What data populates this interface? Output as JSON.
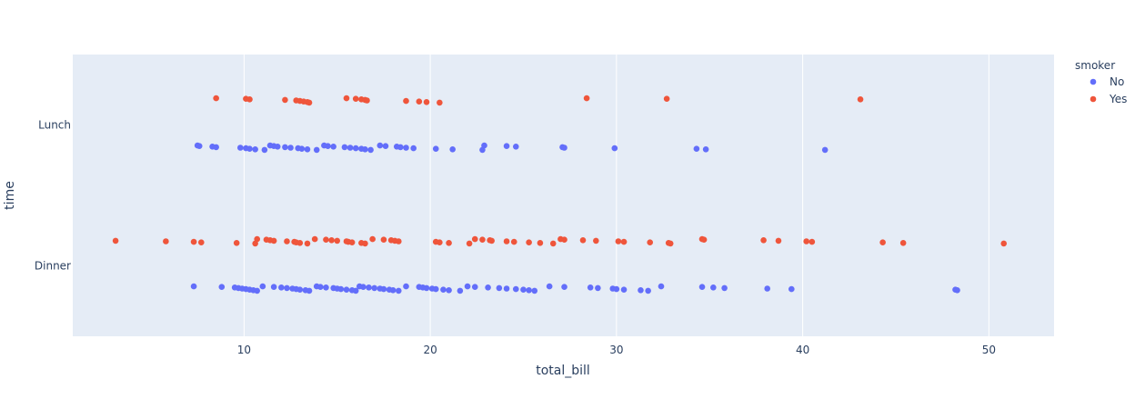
{
  "chart_data": {
    "type": "scatter",
    "xlabel": "total_bill",
    "ylabel": "time",
    "xlim": [
      0.8,
      53.5
    ],
    "x_ticks": [
      10,
      20,
      30,
      40,
      50
    ],
    "categories": [
      "Dinner",
      "Lunch"
    ],
    "grid": "vertical",
    "legend_title": "smoker",
    "legend_position": "top-right",
    "colors": {
      "plot_bg": "#e5ecf6",
      "grid": "#ffffff",
      "text": "#2a3f5f",
      "No": "#636efa",
      "Yes": "#ef553b"
    },
    "series": [
      {
        "name": "No",
        "color": "#636efa",
        "points": [
          {
            "x": 7.5,
            "y": "Lunch"
          },
          {
            "x": 7.6,
            "y": "Lunch"
          },
          {
            "x": 8.3,
            "y": "Lunch"
          },
          {
            "x": 8.5,
            "y": "Lunch"
          },
          {
            "x": 9.8,
            "y": "Lunch"
          },
          {
            "x": 10.1,
            "y": "Lunch"
          },
          {
            "x": 10.3,
            "y": "Lunch"
          },
          {
            "x": 10.6,
            "y": "Lunch"
          },
          {
            "x": 11.1,
            "y": "Lunch"
          },
          {
            "x": 11.4,
            "y": "Lunch"
          },
          {
            "x": 11.6,
            "y": "Lunch"
          },
          {
            "x": 11.8,
            "y": "Lunch"
          },
          {
            "x": 12.2,
            "y": "Lunch"
          },
          {
            "x": 12.5,
            "y": "Lunch"
          },
          {
            "x": 12.9,
            "y": "Lunch"
          },
          {
            "x": 13.1,
            "y": "Lunch"
          },
          {
            "x": 13.4,
            "y": "Lunch"
          },
          {
            "x": 13.9,
            "y": "Lunch"
          },
          {
            "x": 14.3,
            "y": "Lunch"
          },
          {
            "x": 14.5,
            "y": "Lunch"
          },
          {
            "x": 14.8,
            "y": "Lunch"
          },
          {
            "x": 15.4,
            "y": "Lunch"
          },
          {
            "x": 15.7,
            "y": "Lunch"
          },
          {
            "x": 16.0,
            "y": "Lunch"
          },
          {
            "x": 16.3,
            "y": "Lunch"
          },
          {
            "x": 16.5,
            "y": "Lunch"
          },
          {
            "x": 16.8,
            "y": "Lunch"
          },
          {
            "x": 17.3,
            "y": "Lunch"
          },
          {
            "x": 17.6,
            "y": "Lunch"
          },
          {
            "x": 18.2,
            "y": "Lunch"
          },
          {
            "x": 18.4,
            "y": "Lunch"
          },
          {
            "x": 18.7,
            "y": "Lunch"
          },
          {
            "x": 19.1,
            "y": "Lunch"
          },
          {
            "x": 20.3,
            "y": "Lunch"
          },
          {
            "x": 21.2,
            "y": "Lunch"
          },
          {
            "x": 22.8,
            "y": "Lunch"
          },
          {
            "x": 22.9,
            "y": "Lunch"
          },
          {
            "x": 24.1,
            "y": "Lunch"
          },
          {
            "x": 24.6,
            "y": "Lunch"
          },
          {
            "x": 27.1,
            "y": "Lunch"
          },
          {
            "x": 27.2,
            "y": "Lunch"
          },
          {
            "x": 29.9,
            "y": "Lunch"
          },
          {
            "x": 34.3,
            "y": "Lunch"
          },
          {
            "x": 34.8,
            "y": "Lunch"
          },
          {
            "x": 41.2,
            "y": "Lunch"
          },
          {
            "x": 7.3,
            "y": "Dinner"
          },
          {
            "x": 8.8,
            "y": "Dinner"
          },
          {
            "x": 9.5,
            "y": "Dinner"
          },
          {
            "x": 9.7,
            "y": "Dinner"
          },
          {
            "x": 9.9,
            "y": "Dinner"
          },
          {
            "x": 10.1,
            "y": "Dinner"
          },
          {
            "x": 10.3,
            "y": "Dinner"
          },
          {
            "x": 10.5,
            "y": "Dinner"
          },
          {
            "x": 10.7,
            "y": "Dinner"
          },
          {
            "x": 11.0,
            "y": "Dinner"
          },
          {
            "x": 11.6,
            "y": "Dinner"
          },
          {
            "x": 12.0,
            "y": "Dinner"
          },
          {
            "x": 12.3,
            "y": "Dinner"
          },
          {
            "x": 12.6,
            "y": "Dinner"
          },
          {
            "x": 12.8,
            "y": "Dinner"
          },
          {
            "x": 13.0,
            "y": "Dinner"
          },
          {
            "x": 13.3,
            "y": "Dinner"
          },
          {
            "x": 13.5,
            "y": "Dinner"
          },
          {
            "x": 13.9,
            "y": "Dinner"
          },
          {
            "x": 14.1,
            "y": "Dinner"
          },
          {
            "x": 14.4,
            "y": "Dinner"
          },
          {
            "x": 14.8,
            "y": "Dinner"
          },
          {
            "x": 15.0,
            "y": "Dinner"
          },
          {
            "x": 15.2,
            "y": "Dinner"
          },
          {
            "x": 15.5,
            "y": "Dinner"
          },
          {
            "x": 15.8,
            "y": "Dinner"
          },
          {
            "x": 16.0,
            "y": "Dinner"
          },
          {
            "x": 16.2,
            "y": "Dinner"
          },
          {
            "x": 16.4,
            "y": "Dinner"
          },
          {
            "x": 16.7,
            "y": "Dinner"
          },
          {
            "x": 17.0,
            "y": "Dinner"
          },
          {
            "x": 17.3,
            "y": "Dinner"
          },
          {
            "x": 17.5,
            "y": "Dinner"
          },
          {
            "x": 17.8,
            "y": "Dinner"
          },
          {
            "x": 18.0,
            "y": "Dinner"
          },
          {
            "x": 18.3,
            "y": "Dinner"
          },
          {
            "x": 18.7,
            "y": "Dinner"
          },
          {
            "x": 19.4,
            "y": "Dinner"
          },
          {
            "x": 19.6,
            "y": "Dinner"
          },
          {
            "x": 19.8,
            "y": "Dinner"
          },
          {
            "x": 20.1,
            "y": "Dinner"
          },
          {
            "x": 20.3,
            "y": "Dinner"
          },
          {
            "x": 20.7,
            "y": "Dinner"
          },
          {
            "x": 21.0,
            "y": "Dinner"
          },
          {
            "x": 21.6,
            "y": "Dinner"
          },
          {
            "x": 22.0,
            "y": "Dinner"
          },
          {
            "x": 22.4,
            "y": "Dinner"
          },
          {
            "x": 23.1,
            "y": "Dinner"
          },
          {
            "x": 23.7,
            "y": "Dinner"
          },
          {
            "x": 24.1,
            "y": "Dinner"
          },
          {
            "x": 24.6,
            "y": "Dinner"
          },
          {
            "x": 25.0,
            "y": "Dinner"
          },
          {
            "x": 25.3,
            "y": "Dinner"
          },
          {
            "x": 25.6,
            "y": "Dinner"
          },
          {
            "x": 26.4,
            "y": "Dinner"
          },
          {
            "x": 27.2,
            "y": "Dinner"
          },
          {
            "x": 28.6,
            "y": "Dinner"
          },
          {
            "x": 29.0,
            "y": "Dinner"
          },
          {
            "x": 29.8,
            "y": "Dinner"
          },
          {
            "x": 30.0,
            "y": "Dinner"
          },
          {
            "x": 30.4,
            "y": "Dinner"
          },
          {
            "x": 31.3,
            "y": "Dinner"
          },
          {
            "x": 31.7,
            "y": "Dinner"
          },
          {
            "x": 32.4,
            "y": "Dinner"
          },
          {
            "x": 34.6,
            "y": "Dinner"
          },
          {
            "x": 35.2,
            "y": "Dinner"
          },
          {
            "x": 35.8,
            "y": "Dinner"
          },
          {
            "x": 38.1,
            "y": "Dinner"
          },
          {
            "x": 39.4,
            "y": "Dinner"
          },
          {
            "x": 48.2,
            "y": "Dinner"
          },
          {
            "x": 48.3,
            "y": "Dinner"
          }
        ]
      },
      {
        "name": "Yes",
        "color": "#ef553b",
        "points": [
          {
            "x": 8.5,
            "y": "Lunch"
          },
          {
            "x": 10.1,
            "y": "Lunch"
          },
          {
            "x": 10.3,
            "y": "Lunch"
          },
          {
            "x": 12.2,
            "y": "Lunch"
          },
          {
            "x": 12.8,
            "y": "Lunch"
          },
          {
            "x": 13.0,
            "y": "Lunch"
          },
          {
            "x": 13.2,
            "y": "Lunch"
          },
          {
            "x": 13.4,
            "y": "Lunch"
          },
          {
            "x": 13.5,
            "y": "Lunch"
          },
          {
            "x": 15.5,
            "y": "Lunch"
          },
          {
            "x": 16.0,
            "y": "Lunch"
          },
          {
            "x": 16.3,
            "y": "Lunch"
          },
          {
            "x": 16.5,
            "y": "Lunch"
          },
          {
            "x": 16.6,
            "y": "Lunch"
          },
          {
            "x": 18.7,
            "y": "Lunch"
          },
          {
            "x": 19.4,
            "y": "Lunch"
          },
          {
            "x": 19.8,
            "y": "Lunch"
          },
          {
            "x": 20.5,
            "y": "Lunch"
          },
          {
            "x": 28.4,
            "y": "Lunch"
          },
          {
            "x": 32.7,
            "y": "Lunch"
          },
          {
            "x": 43.1,
            "y": "Lunch"
          },
          {
            "x": 3.1,
            "y": "Dinner"
          },
          {
            "x": 5.8,
            "y": "Dinner"
          },
          {
            "x": 7.3,
            "y": "Dinner"
          },
          {
            "x": 7.7,
            "y": "Dinner"
          },
          {
            "x": 9.6,
            "y": "Dinner"
          },
          {
            "x": 10.6,
            "y": "Dinner"
          },
          {
            "x": 10.7,
            "y": "Dinner"
          },
          {
            "x": 11.2,
            "y": "Dinner"
          },
          {
            "x": 11.4,
            "y": "Dinner"
          },
          {
            "x": 11.6,
            "y": "Dinner"
          },
          {
            "x": 12.3,
            "y": "Dinner"
          },
          {
            "x": 12.7,
            "y": "Dinner"
          },
          {
            "x": 12.8,
            "y": "Dinner"
          },
          {
            "x": 13.0,
            "y": "Dinner"
          },
          {
            "x": 13.4,
            "y": "Dinner"
          },
          {
            "x": 13.8,
            "y": "Dinner"
          },
          {
            "x": 14.4,
            "y": "Dinner"
          },
          {
            "x": 14.7,
            "y": "Dinner"
          },
          {
            "x": 15.0,
            "y": "Dinner"
          },
          {
            "x": 15.5,
            "y": "Dinner"
          },
          {
            "x": 15.6,
            "y": "Dinner"
          },
          {
            "x": 15.8,
            "y": "Dinner"
          },
          {
            "x": 16.3,
            "y": "Dinner"
          },
          {
            "x": 16.5,
            "y": "Dinner"
          },
          {
            "x": 16.9,
            "y": "Dinner"
          },
          {
            "x": 17.5,
            "y": "Dinner"
          },
          {
            "x": 17.9,
            "y": "Dinner"
          },
          {
            "x": 18.1,
            "y": "Dinner"
          },
          {
            "x": 18.3,
            "y": "Dinner"
          },
          {
            "x": 20.3,
            "y": "Dinner"
          },
          {
            "x": 20.5,
            "y": "Dinner"
          },
          {
            "x": 21.0,
            "y": "Dinner"
          },
          {
            "x": 22.1,
            "y": "Dinner"
          },
          {
            "x": 22.4,
            "y": "Dinner"
          },
          {
            "x": 22.8,
            "y": "Dinner"
          },
          {
            "x": 23.2,
            "y": "Dinner"
          },
          {
            "x": 23.3,
            "y": "Dinner"
          },
          {
            "x": 24.1,
            "y": "Dinner"
          },
          {
            "x": 24.5,
            "y": "Dinner"
          },
          {
            "x": 25.3,
            "y": "Dinner"
          },
          {
            "x": 25.9,
            "y": "Dinner"
          },
          {
            "x": 26.6,
            "y": "Dinner"
          },
          {
            "x": 27.0,
            "y": "Dinner"
          },
          {
            "x": 27.2,
            "y": "Dinner"
          },
          {
            "x": 28.2,
            "y": "Dinner"
          },
          {
            "x": 28.9,
            "y": "Dinner"
          },
          {
            "x": 30.1,
            "y": "Dinner"
          },
          {
            "x": 30.4,
            "y": "Dinner"
          },
          {
            "x": 31.8,
            "y": "Dinner"
          },
          {
            "x": 32.8,
            "y": "Dinner"
          },
          {
            "x": 32.9,
            "y": "Dinner"
          },
          {
            "x": 34.6,
            "y": "Dinner"
          },
          {
            "x": 34.7,
            "y": "Dinner"
          },
          {
            "x": 37.9,
            "y": "Dinner"
          },
          {
            "x": 38.7,
            "y": "Dinner"
          },
          {
            "x": 40.2,
            "y": "Dinner"
          },
          {
            "x": 40.5,
            "y": "Dinner"
          },
          {
            "x": 44.3,
            "y": "Dinner"
          },
          {
            "x": 45.4,
            "y": "Dinner"
          },
          {
            "x": 50.8,
            "y": "Dinner"
          }
        ]
      }
    ]
  }
}
